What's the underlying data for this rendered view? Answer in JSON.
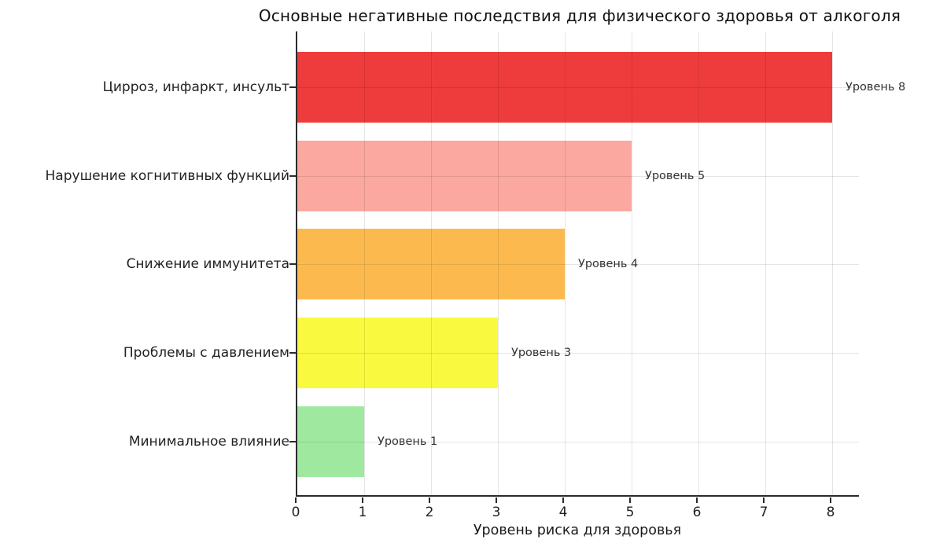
{
  "chart_data": {
    "type": "bar",
    "orientation": "horizontal",
    "title": "Основные негативные последствия для физического здоровья от алкоголя",
    "xlabel": "Уровень риска для здоровья",
    "categories": [
      "Цирроз, инфаркт, инсульт",
      "Нарушение когнитивных функций",
      "Снижение иммунитета",
      "Проблемы с давлением",
      "Минимальное влияние"
    ],
    "values": [
      8,
      5,
      4,
      3,
      1
    ],
    "bar_labels": [
      "Уровень 8",
      "Уровень 5",
      "Уровень 4",
      "Уровень 3",
      "Уровень 1"
    ],
    "bar_colors": [
      "#ee3c3c",
      "#fba8a0",
      "#fcba4e",
      "#f9f93f",
      "#9fe8a0"
    ],
    "x_ticks": [
      0,
      1,
      2,
      3,
      4,
      5,
      6,
      7,
      8
    ],
    "xlim": [
      0,
      8.42
    ],
    "grid": true,
    "grid_on_top_of_bars": true,
    "axis_color": "#2b2b2b",
    "legend": "none"
  }
}
